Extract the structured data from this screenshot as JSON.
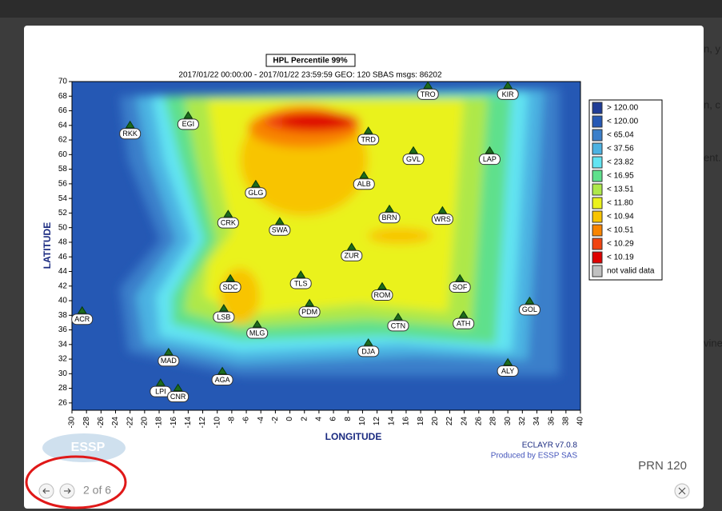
{
  "background": {
    "fragments": [
      "n, y",
      "n, c",
      "ent.",
      "vine"
    ]
  },
  "lightbox": {
    "caption": "PRN 120",
    "counter": "2 of 6"
  },
  "map": {
    "title": "HPL Percentile 99%",
    "subtitle": "2017/01/22 00:00:00 - 2017/01/22 23:59:59  GEO: 120  SBAS  msgs: 86202",
    "xlabel": "LONGITUDE",
    "ylabel": "LATITUDE",
    "xlim": [
      -30,
      40
    ],
    "ylim": [
      25,
      70
    ],
    "xticks": [
      -30,
      -28,
      -26,
      -24,
      -22,
      -20,
      -18,
      -16,
      -14,
      -12,
      -10,
      -8,
      -6,
      -4,
      -2,
      0,
      2,
      4,
      6,
      8,
      10,
      12,
      14,
      16,
      18,
      20,
      22,
      24,
      26,
      28,
      30,
      32,
      34,
      36,
      38,
      40
    ],
    "yticks": [
      26,
      28,
      30,
      32,
      34,
      36,
      38,
      40,
      42,
      44,
      46,
      48,
      50,
      52,
      54,
      56,
      58,
      60,
      62,
      64,
      66,
      68,
      70
    ],
    "stations": [
      {
        "name": "TRO",
        "lon": 19,
        "lat": 69.3
      },
      {
        "name": "KIR",
        "lon": 30,
        "lat": 69.3
      },
      {
        "name": "EGI",
        "lon": -14,
        "lat": 65.2
      },
      {
        "name": "RKK",
        "lon": -22,
        "lat": 63.9
      },
      {
        "name": "TRD",
        "lon": 10.8,
        "lat": 63.1
      },
      {
        "name": "GVL",
        "lon": 17,
        "lat": 60.4
      },
      {
        "name": "LAP",
        "lon": 27.5,
        "lat": 60.4
      },
      {
        "name": "ALB",
        "lon": 10.2,
        "lat": 57
      },
      {
        "name": "GLG",
        "lon": -4.7,
        "lat": 55.8
      },
      {
        "name": "BRN",
        "lon": 13.7,
        "lat": 52.4
      },
      {
        "name": "WRS",
        "lon": 21,
        "lat": 52.2
      },
      {
        "name": "CRK",
        "lon": -8.5,
        "lat": 51.7
      },
      {
        "name": "SWA",
        "lon": -1.4,
        "lat": 50.7
      },
      {
        "name": "ZUR",
        "lon": 8.5,
        "lat": 47.2
      },
      {
        "name": "TLS",
        "lon": 1.5,
        "lat": 43.4
      },
      {
        "name": "SDC",
        "lon": -8.2,
        "lat": 42.9
      },
      {
        "name": "SOF",
        "lon": 23.4,
        "lat": 42.9
      },
      {
        "name": "ROM",
        "lon": 12.7,
        "lat": 41.8
      },
      {
        "name": "PDM",
        "lon": 2.7,
        "lat": 39.5
      },
      {
        "name": "GOL",
        "lon": 33,
        "lat": 39.8
      },
      {
        "name": "LSB",
        "lon": -9.1,
        "lat": 38.8
      },
      {
        "name": "ACR",
        "lon": -28.6,
        "lat": 38.5
      },
      {
        "name": "ATH",
        "lon": 23.9,
        "lat": 37.9
      },
      {
        "name": "CTN",
        "lon": 14.9,
        "lat": 37.6
      },
      {
        "name": "MLG",
        "lon": -4.5,
        "lat": 36.6
      },
      {
        "name": "DJA",
        "lon": 10.8,
        "lat": 34.1
      },
      {
        "name": "MAD",
        "lon": -16.7,
        "lat": 32.8
      },
      {
        "name": "ALY",
        "lon": 30,
        "lat": 31.4
      },
      {
        "name": "AGA",
        "lon": -9.3,
        "lat": 30.2
      },
      {
        "name": "LPI",
        "lon": -17.8,
        "lat": 28.6
      },
      {
        "name": "CNR",
        "lon": -15.4,
        "lat": 27.9
      }
    ],
    "legend": [
      {
        "label": "> 120.00",
        "color": "#1f3c96"
      },
      {
        "label": "< 120.00",
        "color": "#2558b4"
      },
      {
        "label": "< 65.04",
        "color": "#3b7fca"
      },
      {
        "label": "< 37.56",
        "color": "#4cb2e2"
      },
      {
        "label": "< 23.82",
        "color": "#62e4f2"
      },
      {
        "label": "< 16.95",
        "color": "#5ee08c"
      },
      {
        "label": "< 13.51",
        "color": "#aee84a"
      },
      {
        "label": "< 11.80",
        "color": "#eaf21c"
      },
      {
        "label": "< 10.94",
        "color": "#f8c400"
      },
      {
        "label": "< 10.51",
        "color": "#f88400"
      },
      {
        "label": "< 10.29",
        "color": "#f04410"
      },
      {
        "label": "< 10.19",
        "color": "#de0000"
      },
      {
        "label": "not valid data",
        "color": "#c0c0c0"
      }
    ]
  },
  "footer": {
    "logo": "ESSP",
    "version": "ECLAYR v7.0.8",
    "producer": "Produced by ESSP SAS"
  }
}
